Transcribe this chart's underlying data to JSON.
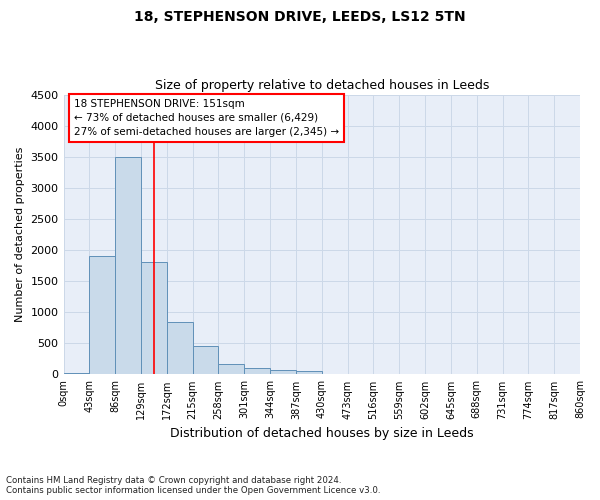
{
  "title_line1": "18, STEPHENSON DRIVE, LEEDS, LS12 5TN",
  "title_line2": "Size of property relative to detached houses in Leeds",
  "xlabel": "Distribution of detached houses by size in Leeds",
  "ylabel": "Number of detached properties",
  "footnote": "Contains HM Land Registry data © Crown copyright and database right 2024.\nContains public sector information licensed under the Open Government Licence v3.0.",
  "bin_labels": [
    "0sqm",
    "43sqm",
    "86sqm",
    "129sqm",
    "172sqm",
    "215sqm",
    "258sqm",
    "301sqm",
    "344sqm",
    "387sqm",
    "430sqm",
    "473sqm",
    "516sqm",
    "559sqm",
    "602sqm",
    "645sqm",
    "688sqm",
    "731sqm",
    "774sqm",
    "817sqm",
    "860sqm"
  ],
  "bar_values": [
    30,
    1900,
    3500,
    1800,
    850,
    450,
    175,
    100,
    75,
    55,
    0,
    0,
    0,
    0,
    0,
    0,
    0,
    0,
    0,
    0
  ],
  "bar_color": "#c9daea",
  "bar_edge_color": "#6090b8",
  "vline_x_index": 3.51,
  "vline_color": "red",
  "ylim": [
    0,
    4500
  ],
  "yticks": [
    0,
    500,
    1000,
    1500,
    2000,
    2500,
    3000,
    3500,
    4000,
    4500
  ],
  "annotation_text": "18 STEPHENSON DRIVE: 151sqm\n← 73% of detached houses are smaller (6,429)\n27% of semi-detached houses are larger (2,345) →",
  "annotation_box_color": "white",
  "annotation_border_color": "red",
  "grid_color": "#ccd8e8",
  "background_color": "#e8eef8",
  "title_fontsize": 10,
  "subtitle_fontsize": 9
}
